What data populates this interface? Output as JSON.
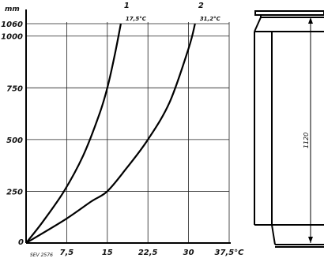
{
  "chart_data": {
    "type": "line",
    "ylabel_unit": "mm",
    "y_ticks": [
      "1060",
      "1000",
      "750",
      "500",
      "250",
      "0"
    ],
    "x_ticks": [
      "7,5",
      "15",
      "22,5",
      "30",
      "37,5°C"
    ],
    "y_tick_values": [
      1060,
      1000,
      750,
      500,
      250
    ],
    "x_tick_values": [
      7.5,
      15,
      22.5,
      30,
      37.5
    ],
    "xlim": [
      0,
      37.5
    ],
    "ylim": [
      0,
      1060
    ],
    "grid": true,
    "series": [
      {
        "name": "1",
        "end_label": "17,5°C",
        "points": [
          [
            0,
            0
          ],
          [
            3,
            100
          ],
          [
            7,
            250
          ],
          [
            10.5,
            420
          ],
          [
            13.5,
            620
          ],
          [
            15,
            750
          ],
          [
            16.3,
            900
          ],
          [
            17.5,
            1060
          ]
        ]
      },
      {
        "name": "2",
        "end_label": "31,2°C",
        "points": [
          [
            0,
            0
          ],
          [
            7,
            110
          ],
          [
            12,
            200
          ],
          [
            15,
            250
          ],
          [
            18.5,
            360
          ],
          [
            22.5,
            500
          ],
          [
            26.5,
            680
          ],
          [
            30,
            940
          ],
          [
            31.2,
            1060
          ]
        ]
      }
    ],
    "reference_text": "SEV 2576"
  },
  "vessel": {
    "height_label": "1120"
  }
}
